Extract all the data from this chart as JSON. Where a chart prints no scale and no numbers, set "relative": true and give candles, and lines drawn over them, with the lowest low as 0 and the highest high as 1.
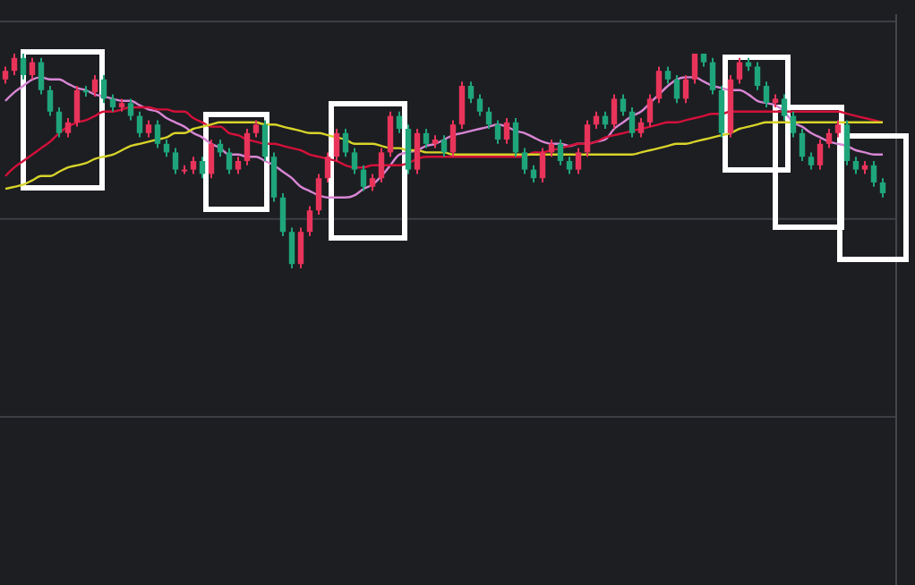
{
  "chart_data": {
    "type": "candlestick",
    "relative": true,
    "ref_lines": [
      {
        "axis": "y",
        "value": 0.23,
        "color": "#3d3e44"
      }
    ],
    "categories": [
      null,
      null,
      null,
      null,
      null,
      null,
      null,
      null,
      null,
      null,
      null,
      null,
      null,
      null,
      null,
      null,
      null,
      null,
      null,
      null,
      null,
      null,
      null,
      null,
      null,
      null,
      null,
      null,
      null,
      null,
      null,
      null,
      null,
      null,
      null,
      null,
      null,
      null,
      null,
      null,
      null,
      null,
      null,
      null,
      null,
      null,
      null,
      null,
      null,
      null,
      null,
      null,
      null,
      null,
      null,
      null,
      null,
      null,
      null,
      null,
      null,
      null,
      null,
      null,
      null,
      null,
      null,
      null,
      null,
      null,
      null,
      null,
      null,
      null,
      null,
      null,
      null,
      null,
      null,
      null,
      null,
      null,
      null,
      null,
      null,
      null,
      null,
      null,
      null,
      null,
      null,
      null,
      null,
      null,
      null,
      null,
      null,
      null,
      null
    ],
    "ohlc": [
      [
        0.88,
        0.94,
        0.86,
        0.92
      ],
      [
        0.92,
        1.0,
        0.9,
        0.98
      ],
      [
        0.98,
        1.0,
        0.88,
        0.9
      ],
      [
        0.9,
        0.98,
        0.88,
        0.96
      ],
      [
        0.96,
        0.98,
        0.81,
        0.83
      ],
      [
        0.83,
        0.85,
        0.71,
        0.73
      ],
      [
        0.73,
        0.75,
        0.61,
        0.63
      ],
      [
        0.63,
        0.7,
        0.61,
        0.68
      ],
      [
        0.68,
        0.85,
        0.66,
        0.83
      ],
      [
        0.83,
        0.85,
        0.8,
        0.82
      ],
      [
        0.82,
        0.9,
        0.8,
        0.88
      ],
      [
        0.88,
        0.9,
        0.77,
        0.79
      ],
      [
        0.79,
        0.81,
        0.73,
        0.75
      ],
      [
        0.75,
        0.79,
        0.73,
        0.77
      ],
      [
        0.77,
        0.79,
        0.69,
        0.71
      ],
      [
        0.71,
        0.73,
        0.61,
        0.63
      ],
      [
        0.63,
        0.69,
        0.61,
        0.67
      ],
      [
        0.67,
        0.69,
        0.56,
        0.58
      ],
      [
        0.58,
        0.6,
        0.52,
        0.54
      ],
      [
        0.54,
        0.56,
        0.44,
        0.46
      ],
      [
        0.46,
        0.48,
        0.44,
        0.46
      ],
      [
        0.46,
        0.52,
        0.44,
        0.5
      ],
      [
        0.5,
        0.52,
        0.42,
        0.44
      ],
      [
        0.44,
        0.6,
        0.42,
        0.58
      ],
      [
        0.58,
        0.6,
        0.52,
        0.54
      ],
      [
        0.54,
        0.56,
        0.44,
        0.46
      ],
      [
        0.46,
        0.52,
        0.44,
        0.5
      ],
      [
        0.5,
        0.65,
        0.48,
        0.63
      ],
      [
        0.63,
        0.69,
        0.61,
        0.67
      ],
      [
        0.67,
        0.69,
        0.5,
        0.52
      ],
      [
        0.52,
        0.54,
        0.31,
        0.33
      ],
      [
        0.33,
        0.35,
        0.15,
        0.17
      ],
      [
        0.17,
        0.19,
        0,
        0.02
      ],
      [
        0.02,
        0.19,
        0,
        0.17
      ],
      [
        0.17,
        0.29,
        0.15,
        0.27
      ],
      [
        0.27,
        0.44,
        0.25,
        0.42
      ],
      [
        0.42,
        0.54,
        0.4,
        0.52
      ],
      [
        0.52,
        0.65,
        0.5,
        0.63
      ],
      [
        0.63,
        0.65,
        0.52,
        0.54
      ],
      [
        0.54,
        0.56,
        0.44,
        0.46
      ],
      [
        0.46,
        0.48,
        0.36,
        0.38
      ],
      [
        0.38,
        0.44,
        0.36,
        0.42
      ],
      [
        0.42,
        0.56,
        0.4,
        0.54
      ],
      [
        0.54,
        0.73,
        0.52,
        0.71
      ],
      [
        0.71,
        0.73,
        0.63,
        0.65
      ],
      [
        0.65,
        0.67,
        0.44,
        0.46
      ],
      [
        0.46,
        0.65,
        0.44,
        0.63
      ],
      [
        0.63,
        0.65,
        0.56,
        0.58
      ],
      [
        0.58,
        0.62,
        0.56,
        0.6
      ],
      [
        0.6,
        0.62,
        0.52,
        0.54
      ],
      [
        0.54,
        0.69,
        0.52,
        0.67
      ],
      [
        0.67,
        0.87,
        0.65,
        0.85
      ],
      [
        0.85,
        0.87,
        0.77,
        0.79
      ],
      [
        0.79,
        0.81,
        0.71,
        0.73
      ],
      [
        0.73,
        0.75,
        0.65,
        0.67
      ],
      [
        0.67,
        0.69,
        0.58,
        0.6
      ],
      [
        0.6,
        0.7,
        0.58,
        0.68
      ],
      [
        0.68,
        0.7,
        0.52,
        0.54
      ],
      [
        0.54,
        0.56,
        0.44,
        0.46
      ],
      [
        0.46,
        0.48,
        0.4,
        0.42
      ],
      [
        0.42,
        0.56,
        0.4,
        0.54
      ],
      [
        0.54,
        0.6,
        0.52,
        0.58
      ],
      [
        0.58,
        0.6,
        0.48,
        0.5
      ],
      [
        0.5,
        0.52,
        0.44,
        0.46
      ],
      [
        0.46,
        0.56,
        0.44,
        0.54
      ],
      [
        0.54,
        0.69,
        0.52,
        0.67
      ],
      [
        0.67,
        0.73,
        0.65,
        0.71
      ],
      [
        0.71,
        0.73,
        0.65,
        0.67
      ],
      [
        0.67,
        0.81,
        0.65,
        0.79
      ],
      [
        0.79,
        0.81,
        0.71,
        0.73
      ],
      [
        0.73,
        0.75,
        0.61,
        0.63
      ],
      [
        0.63,
        0.7,
        0.61,
        0.68
      ],
      [
        0.68,
        0.81,
        0.66,
        0.79
      ],
      [
        0.79,
        0.94,
        0.77,
        0.92
      ],
      [
        0.92,
        0.94,
        0.86,
        0.88
      ],
      [
        0.88,
        0.9,
        0.77,
        0.79
      ],
      [
        0.79,
        0.9,
        0.77,
        0.88
      ],
      [
        0.88,
        1.0,
        0.86,
        1.0
      ],
      [
        1.0,
        1.0,
        0.94,
        0.96
      ],
      [
        0.96,
        0.98,
        0.81,
        0.83
      ],
      [
        0.83,
        0.85,
        0.61,
        0.63
      ],
      [
        0.63,
        0.9,
        0.61,
        0.88
      ],
      [
        0.88,
        0.98,
        0.86,
        0.96
      ],
      [
        0.96,
        0.98,
        0.92,
        0.94
      ],
      [
        0.94,
        0.96,
        0.83,
        0.85
      ],
      [
        0.85,
        0.87,
        0.75,
        0.77
      ],
      [
        0.77,
        0.81,
        0.75,
        0.79
      ],
      [
        0.79,
        0.81,
        0.69,
        0.71
      ],
      [
        0.71,
        0.73,
        0.61,
        0.63
      ],
      [
        0.63,
        0.65,
        0.5,
        0.52
      ],
      [
        0.52,
        0.54,
        0.46,
        0.48
      ],
      [
        0.48,
        0.6,
        0.46,
        0.58
      ],
      [
        0.58,
        0.65,
        0.56,
        0.63
      ],
      [
        0.63,
        0.69,
        0.61,
        0.67
      ],
      [
        0.67,
        0.69,
        0.48,
        0.5
      ],
      [
        0.5,
        0.52,
        0.44,
        0.46
      ],
      [
        0.46,
        0.5,
        0.44,
        0.48
      ],
      [
        0.48,
        0.5,
        0.38,
        0.4
      ],
      [
        0.4,
        0.42,
        0.33,
        0.35
      ]
    ],
    "series": [
      {
        "type": "line",
        "color": "#d886d4",
        "values": [
          0.78,
          0.82,
          0.85,
          0.88,
          0.89,
          0.88,
          0.88,
          0.86,
          0.84,
          0.83,
          0.81,
          0.8,
          0.79,
          0.78,
          0.78,
          0.76,
          0.74,
          0.73,
          0.7,
          0.68,
          0.66,
          0.63,
          0.61,
          0.58,
          0.56,
          0.53,
          0.53,
          0.52,
          0.52,
          0.5,
          0.48,
          0.45,
          0.42,
          0.38,
          0.36,
          0.34,
          0.33,
          0.33,
          0.33,
          0.34,
          0.37,
          0.39,
          0.43,
          0.48,
          0.53,
          0.54,
          0.55,
          0.57,
          0.58,
          0.6,
          0.62,
          0.63,
          0.64,
          0.65,
          0.66,
          0.67,
          0.66,
          0.64,
          0.63,
          0.61,
          0.59,
          0.58,
          0.58,
          0.57,
          0.58,
          0.58,
          0.59,
          0.6,
          0.65,
          0.68,
          0.71,
          0.73,
          0.77,
          0.81,
          0.85,
          0.88,
          0.89,
          0.89,
          0.87,
          0.85,
          0.84,
          0.83,
          0.83,
          0.81,
          0.78,
          0.77,
          0.76,
          0.73,
          0.68,
          0.66,
          0.63,
          0.61,
          0.59,
          0.58,
          0.57,
          0.55,
          0.54,
          0.53,
          0.53
        ]
      },
      {
        "type": "line",
        "color": "#d4103a",
        "values": [
          0.43,
          0.47,
          0.5,
          0.53,
          0.56,
          0.59,
          0.63,
          0.66,
          0.68,
          0.69,
          0.71,
          0.73,
          0.73,
          0.74,
          0.75,
          0.75,
          0.75,
          0.74,
          0.74,
          0.73,
          0.73,
          0.7,
          0.68,
          0.66,
          0.66,
          0.63,
          0.62,
          0.6,
          0.59,
          0.58,
          0.58,
          0.57,
          0.56,
          0.55,
          0.53,
          0.52,
          0.51,
          0.5,
          0.48,
          0.47,
          0.47,
          0.48,
          0.48,
          0.48,
          0.48,
          0.49,
          0.51,
          0.52,
          0.52,
          0.52,
          0.52,
          0.52,
          0.52,
          0.52,
          0.52,
          0.52,
          0.52,
          0.52,
          0.52,
          0.54,
          0.54,
          0.55,
          0.56,
          0.57,
          0.58,
          0.58,
          0.59,
          0.61,
          0.62,
          0.63,
          0.64,
          0.65,
          0.66,
          0.67,
          0.68,
          0.68,
          0.69,
          0.7,
          0.71,
          0.72,
          0.72,
          0.73,
          0.73,
          0.73,
          0.73,
          0.73,
          0.73,
          0.73,
          0.73,
          0.73,
          0.73,
          0.73,
          0.73,
          0.73,
          0.72,
          0.71,
          0.7,
          0.69,
          0.68
        ]
      },
      {
        "type": "line",
        "color": "#d8d42a",
        "values": [
          0.37,
          0.38,
          0.39,
          0.41,
          0.43,
          0.43,
          0.45,
          0.47,
          0.48,
          0.49,
          0.51,
          0.52,
          0.53,
          0.55,
          0.57,
          0.58,
          0.59,
          0.6,
          0.61,
          0.63,
          0.63,
          0.65,
          0.66,
          0.67,
          0.68,
          0.68,
          0.68,
          0.68,
          0.68,
          0.67,
          0.67,
          0.66,
          0.65,
          0.64,
          0.63,
          0.63,
          0.62,
          0.61,
          0.6,
          0.58,
          0.58,
          0.58,
          0.57,
          0.56,
          0.56,
          0.55,
          0.55,
          0.54,
          0.54,
          0.54,
          0.53,
          0.53,
          0.53,
          0.53,
          0.53,
          0.53,
          0.53,
          0.53,
          0.53,
          0.53,
          0.53,
          0.53,
          0.53,
          0.53,
          0.53,
          0.53,
          0.53,
          0.53,
          0.53,
          0.53,
          0.53,
          0.54,
          0.55,
          0.56,
          0.57,
          0.58,
          0.58,
          0.59,
          0.6,
          0.61,
          0.62,
          0.63,
          0.65,
          0.66,
          0.67,
          0.68,
          0.68,
          0.68,
          0.68,
          0.68,
          0.68,
          0.68,
          0.68,
          0.68,
          0.68,
          0.68,
          0.68,
          0.68,
          0.68
        ]
      }
    ]
  }
}
